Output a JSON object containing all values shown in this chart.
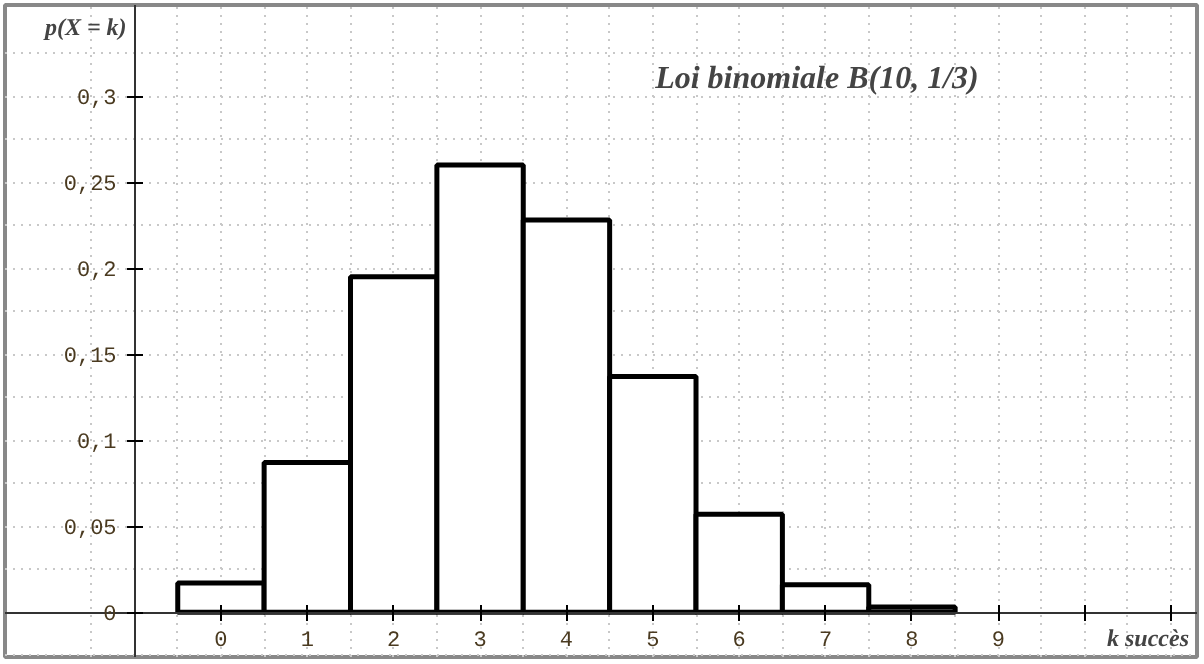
{
  "chart_data": {
    "type": "bar",
    "title": "Loi binomiale B(10, 1/3)",
    "xlabel": "k succès",
    "ylabel": "p(X = k)",
    "x": [
      0,
      1,
      2,
      3,
      4,
      5,
      6,
      7,
      8
    ],
    "values": [
      0.017,
      0.087,
      0.195,
      0.26,
      0.228,
      0.137,
      0.057,
      0.016,
      0.003
    ],
    "color": "#ffffff",
    "xlim": [
      -2.5,
      11.3
    ],
    "ylim": [
      -0.026,
      0.353
    ],
    "xticks": [
      {
        "value": -1,
        "label": null
      },
      0,
      1,
      2,
      3,
      4,
      5,
      6,
      7,
      8,
      9,
      {
        "value": 10,
        "label": null
      },
      {
        "value": 11,
        "label": null
      }
    ],
    "yticks": [
      0,
      {
        "value": 0.05,
        "label": "0,05"
      },
      {
        "value": 0.1,
        "label": "0,1"
      },
      {
        "value": 0.15,
        "label": "0,15"
      },
      {
        "value": 0.2,
        "label": "0,2"
      },
      {
        "value": 0.25,
        "label": "0,25"
      },
      {
        "value": 0.3,
        "label": "0,3"
      }
    ],
    "grid": true
  }
}
